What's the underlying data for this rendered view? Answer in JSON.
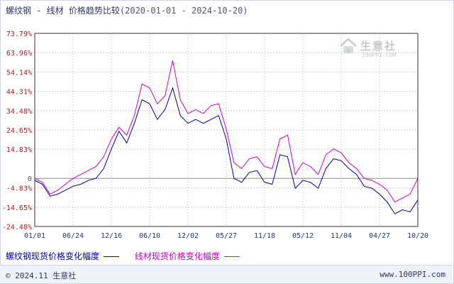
{
  "header": {
    "title": "螺纹钢 - 线材 价格趋势比较",
    "date_range": "(2020-01-01 - 2024-10-20)"
  },
  "watermark": {
    "text": "生意社",
    "sub": "100PPI.COM"
  },
  "legend": {
    "series1": "螺纹钢现货价格变化幅度",
    "series2": "线材现货价格变化幅度"
  },
  "footer": {
    "copyright": "© 2024.11 生意社",
    "site": "www.100PPI.com"
  },
  "colors": {
    "series1": "#0000aa",
    "series2": "#cc00cc",
    "grid": "#cfcfcf",
    "axis": "#333333"
  },
  "chart_data": {
    "type": "line",
    "x_tick_labels": [
      "01/01",
      "06/24",
      "12/16",
      "06/10",
      "12/02",
      "05/27",
      "11/18",
      "05/12",
      "11/04",
      "04/27",
      "10/20"
    ],
    "y_tick_labels": [
      "73.79%",
      "63.96%",
      "54.14%",
      "44.31%",
      "34.48%",
      "24.65%",
      "14.83%",
      "0",
      "-4.83%",
      "-14.65%",
      "-24.48%"
    ],
    "y_tick_values": [
      73.79,
      63.96,
      54.14,
      44.31,
      34.48,
      24.65,
      14.83,
      0,
      -4.83,
      -14.65,
      -24.48
    ],
    "ylim": [
      -24.48,
      73.79
    ],
    "xlim": [
      0,
      10
    ],
    "grid": true,
    "series": [
      {
        "name": "螺纹钢现货价格变化幅度",
        "x": [
          0,
          0.2,
          0.4,
          0.6,
          0.8,
          1.0,
          1.2,
          1.4,
          1.6,
          1.8,
          2.0,
          2.2,
          2.4,
          2.6,
          2.8,
          3.0,
          3.2,
          3.4,
          3.6,
          3.8,
          4.0,
          4.2,
          4.4,
          4.6,
          4.8,
          5.0,
          5.2,
          5.4,
          5.6,
          5.8,
          6.0,
          6.2,
          6.4,
          6.6,
          6.8,
          7.0,
          7.2,
          7.4,
          7.6,
          7.8,
          8.0,
          8.2,
          8.4,
          8.6,
          8.8,
          9.0,
          9.2,
          9.4,
          9.6,
          9.8,
          10.0
        ],
        "y": [
          -1,
          -3,
          -9,
          -8,
          -6,
          -4,
          -3,
          -1,
          0,
          5,
          15,
          24,
          18,
          28,
          40,
          38,
          30,
          35,
          46,
          32,
          28,
          30,
          28,
          30,
          32,
          20,
          0,
          -2,
          3,
          4,
          -2,
          -3,
          12,
          11,
          -5,
          -1,
          -2,
          -5,
          5,
          10,
          9,
          5,
          2,
          -4,
          -5,
          -8,
          -12,
          -18,
          -16,
          -17,
          -11
        ]
      },
      {
        "name": "线材现货价格变化幅度",
        "x": [
          0,
          0.2,
          0.4,
          0.6,
          0.8,
          1.0,
          1.2,
          1.4,
          1.6,
          1.8,
          2.0,
          2.2,
          2.4,
          2.6,
          2.8,
          3.0,
          3.2,
          3.4,
          3.6,
          3.8,
          4.0,
          4.2,
          4.4,
          4.6,
          4.8,
          5.0,
          5.2,
          5.4,
          5.6,
          5.8,
          6.0,
          6.2,
          6.4,
          6.6,
          6.8,
          7.0,
          7.2,
          7.4,
          7.6,
          7.8,
          8.0,
          8.2,
          8.4,
          8.6,
          8.8,
          9.0,
          9.2,
          9.4,
          9.6,
          9.8,
          10.0
        ],
        "y": [
          0,
          -2,
          -8,
          -6,
          -3,
          0,
          2,
          4,
          6,
          11,
          20,
          26,
          22,
          32,
          48,
          46,
          38,
          42,
          60,
          40,
          33,
          35,
          33,
          37,
          38,
          25,
          8,
          5,
          10,
          11,
          6,
          5,
          20,
          22,
          2,
          8,
          6,
          2,
          12,
          15,
          13,
          8,
          5,
          0,
          -1,
          -3,
          -6,
          -12,
          -10,
          -8,
          0
        ]
      }
    ]
  }
}
